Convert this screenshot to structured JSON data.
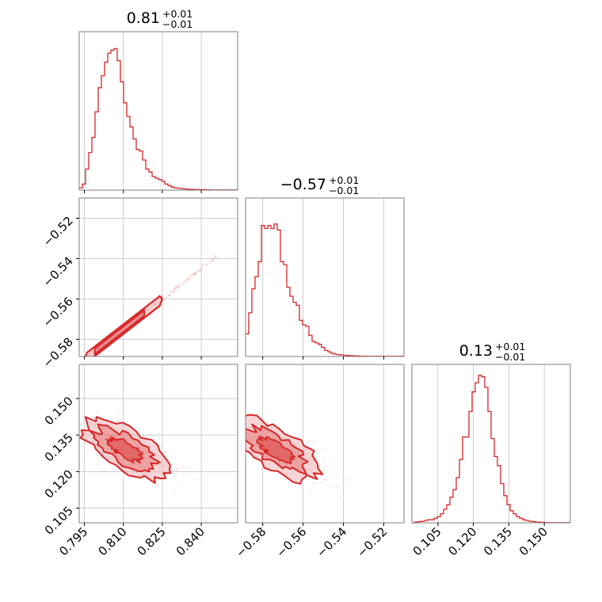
{
  "colors": {
    "series": "#d62728",
    "grid": "#c8c8c8",
    "frame": "#7f7f7f",
    "fill": "#f2b8b9"
  },
  "chart_data": [
    {
      "type": "histogram",
      "parameter_index": 0,
      "title": {
        "main": "0.81",
        "upper": "+0.01",
        "lower": "−0.01"
      },
      "xlim": [
        0.793,
        0.854
      ],
      "x_ticks": [
        0.795,
        0.81,
        0.825,
        0.84
      ],
      "x_tick_labels": [
        "0.795",
        "0.810",
        "0.825",
        "0.840"
      ],
      "bin_start": 0.793,
      "bin_width": 0.00122,
      "counts": [
        0.015,
        0.04,
        0.14,
        0.25,
        0.35,
        0.52,
        0.68,
        0.76,
        0.85,
        0.91,
        0.93,
        0.94,
        0.86,
        0.72,
        0.58,
        0.49,
        0.42,
        0.34,
        0.27,
        0.26,
        0.2,
        0.14,
        0.12,
        0.09,
        0.08,
        0.07,
        0.06,
        0.04,
        0.03,
        0.02,
        0.015,
        0.012,
        0.01,
        0.008,
        0.006,
        0.005,
        0.004,
        0.004,
        0.003,
        0.003,
        0.002,
        0.002,
        0.001,
        0.001,
        0.001,
        0.001,
        0.001,
        0.001,
        0.001,
        0.001
      ]
    },
    {
      "type": "scatter_contour",
      "x_parameter": 0,
      "y_parameter": 1,
      "xlim": [
        0.793,
        0.854
      ],
      "ylim": [
        -0.5885,
        -0.51
      ],
      "x_ticks": [
        0.795,
        0.81,
        0.825,
        0.84
      ],
      "y_ticks": [
        -0.58,
        -0.56,
        -0.54,
        -0.52
      ],
      "y_tick_labels": [
        "−0.58",
        "−0.56",
        "−0.54",
        "−0.52"
      ],
      "relation": "linear",
      "slope": 1.0,
      "intercept": -1.385,
      "scatter_extent": [
        0.794,
        0.846
      ],
      "band_halfwidth": 0.0015,
      "contour_extent": [
        0.796,
        0.824
      ]
    },
    {
      "type": "histogram",
      "parameter_index": 1,
      "title": {
        "main": "−0.57",
        "upper": "+0.01",
        "lower": "−0.01"
      },
      "xlim": [
        -0.5885,
        -0.51
      ],
      "x_ticks": [
        -0.58,
        -0.56,
        -0.54,
        -0.52
      ],
      "x_tick_labels": [
        "−0.58",
        "−0.56",
        "−0.54",
        "−0.52"
      ],
      "bin_start": -0.5885,
      "bin_width": 0.00157,
      "counts": [
        0.15,
        0.29,
        0.45,
        0.53,
        0.63,
        0.87,
        0.85,
        0.87,
        0.85,
        0.88,
        0.84,
        0.63,
        0.61,
        0.46,
        0.4,
        0.36,
        0.34,
        0.24,
        0.21,
        0.2,
        0.14,
        0.1,
        0.09,
        0.08,
        0.06,
        0.04,
        0.03,
        0.02,
        0.015,
        0.012,
        0.01,
        0.008,
        0.006,
        0.005,
        0.004,
        0.003,
        0.002,
        0.002,
        0.001,
        0.001,
        0.001,
        0.001,
        0.001,
        0.001,
        0.001,
        0.001,
        0.001,
        0.001,
        0.001,
        0.001
      ]
    },
    {
      "type": "scatter_contour",
      "x_parameter": 0,
      "y_parameter": 2,
      "xlim": [
        0.793,
        0.854
      ],
      "ylim": [
        0.099,
        0.164
      ],
      "x_ticks": [
        0.795,
        0.81,
        0.825,
        0.84
      ],
      "y_ticks": [
        0.105,
        0.12,
        0.135,
        0.15
      ],
      "y_tick_labels": [
        "0.105",
        "0.120",
        "0.135",
        "0.150"
      ],
      "x_tick_labels": [
        "0.795",
        "0.810",
        "0.825",
        "0.840"
      ],
      "relation": "anticorrelated",
      "center": [
        0.809,
        0.129
      ],
      "slope": -0.55,
      "scatter_extent": [
        0.794,
        0.846
      ],
      "contour_extent": [
        0.796,
        0.826
      ]
    },
    {
      "type": "scatter_contour",
      "x_parameter": 1,
      "y_parameter": 2,
      "xlim": [
        -0.5885,
        -0.51
      ],
      "ylim": [
        0.099,
        0.164
      ],
      "x_ticks": [
        -0.58,
        -0.56,
        -0.54,
        -0.52
      ],
      "x_tick_labels": [
        "−0.58",
        "−0.56",
        "−0.54",
        "−0.52"
      ],
      "relation": "anticorrelated",
      "center": [
        -0.576,
        0.129
      ],
      "slope": -0.42,
      "scatter_extent": [
        -0.588,
        -0.522
      ],
      "contour_extent": [
        -0.586,
        -0.549
      ]
    },
    {
      "type": "histogram",
      "parameter_index": 2,
      "title": {
        "main": "0.13",
        "upper": "+0.01",
        "lower": "−0.01"
      },
      "xlim": [
        0.094,
        0.161
      ],
      "x_ticks": [
        0.105,
        0.12,
        0.135,
        0.15
      ],
      "x_tick_labels": [
        "0.105",
        "0.120",
        "0.135",
        "0.150"
      ],
      "bin_start": 0.094,
      "bin_width": 0.00134,
      "counts": [
        0.0,
        0.005,
        0.008,
        0.01,
        0.015,
        0.02,
        0.02,
        0.03,
        0.04,
        0.06,
        0.09,
        0.12,
        0.17,
        0.22,
        0.3,
        0.42,
        0.57,
        0.57,
        0.74,
        0.87,
        0.93,
        0.98,
        0.97,
        0.9,
        0.74,
        0.56,
        0.44,
        0.38,
        0.26,
        0.18,
        0.12,
        0.08,
        0.06,
        0.04,
        0.03,
        0.02,
        0.015,
        0.01,
        0.008,
        0.005,
        0.004,
        0.003,
        0.002,
        0.001,
        0.001,
        0.001,
        0.001,
        0.001,
        0.001,
        0.001
      ]
    }
  ]
}
